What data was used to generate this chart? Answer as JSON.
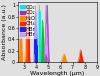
{
  "xlabel": "Wavelength (μm)",
  "ylabel": "Absorbance (a.u.)",
  "xlim": [
    2.5,
    9.0
  ],
  "ylim": [
    0.0,
    1.05
  ],
  "background_color": "#e0e0e0",
  "legend": {
    "entries": [
      "CO₂",
      "CO₂",
      "H₂O",
      "CH₄",
      "HBr",
      "HBr"
    ],
    "colors": [
      "#00e5ff",
      "#9933cc",
      "#ff8800",
      "#ff2200",
      "#2222ee",
      "#cc99ff"
    ],
    "fontsize": 3.8
  },
  "tick_fontsize": 3.5,
  "label_fontsize": 4.5
}
